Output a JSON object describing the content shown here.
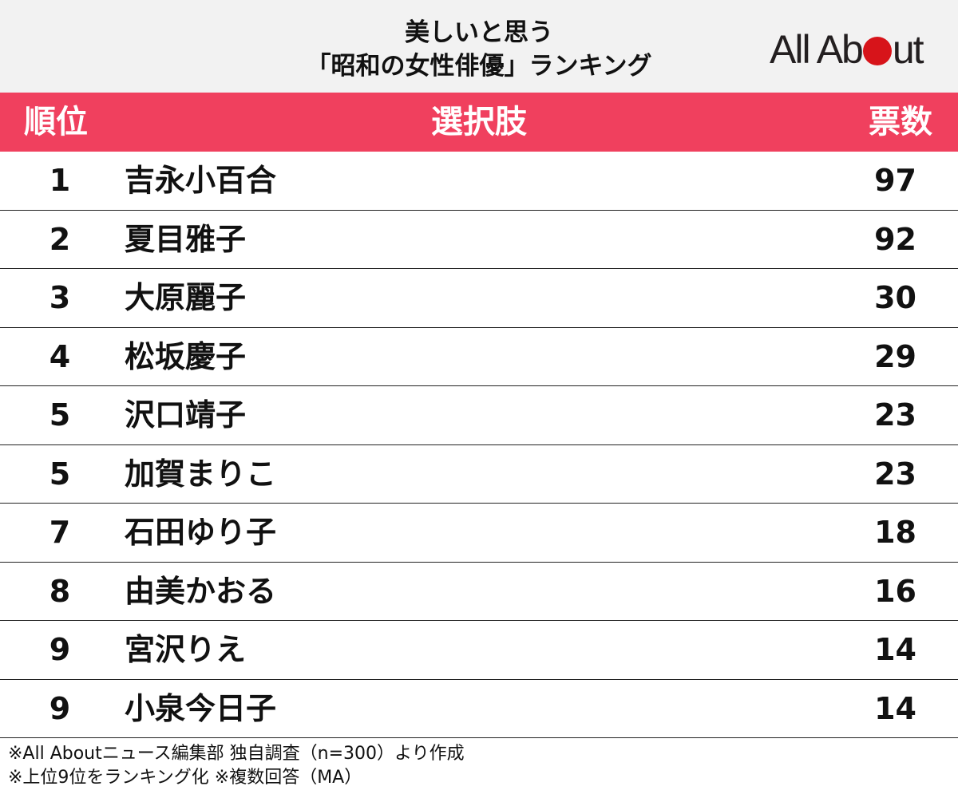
{
  "title": {
    "line1": "美しいと思う",
    "line2": "「昭和の女性俳優」ランキング"
  },
  "logo": {
    "text_left": "All Ab",
    "text_right": "ut",
    "accent_color": "#d7141a"
  },
  "header": {
    "rank": "順位",
    "choice": "選択肢",
    "votes": "票数",
    "color": "#f0405e"
  },
  "chart_data": {
    "type": "table",
    "columns": [
      "順位",
      "選択肢",
      "票数"
    ],
    "rows": [
      {
        "rank": "1",
        "name": "吉永小百合",
        "votes": "97"
      },
      {
        "rank": "2",
        "name": "夏目雅子",
        "votes": "92"
      },
      {
        "rank": "3",
        "name": "大原麗子",
        "votes": "30"
      },
      {
        "rank": "4",
        "name": "松坂慶子",
        "votes": "29"
      },
      {
        "rank": "5",
        "name": "沢口靖子",
        "votes": "23"
      },
      {
        "rank": "5",
        "name": "加賀まりこ",
        "votes": "23"
      },
      {
        "rank": "7",
        "name": "石田ゆり子",
        "votes": "18"
      },
      {
        "rank": "8",
        "name": "由美かおる",
        "votes": "16"
      },
      {
        "rank": "9",
        "name": "宮沢りえ",
        "votes": "14"
      },
      {
        "rank": "9",
        "name": "小泉今日子",
        "votes": "14"
      }
    ]
  },
  "notes": {
    "line1": "※All Aboutニュース編集部 独自調査（n=300）より作成",
    "line2": "※上位9位をランキング化 ※複数回答（MA）"
  }
}
